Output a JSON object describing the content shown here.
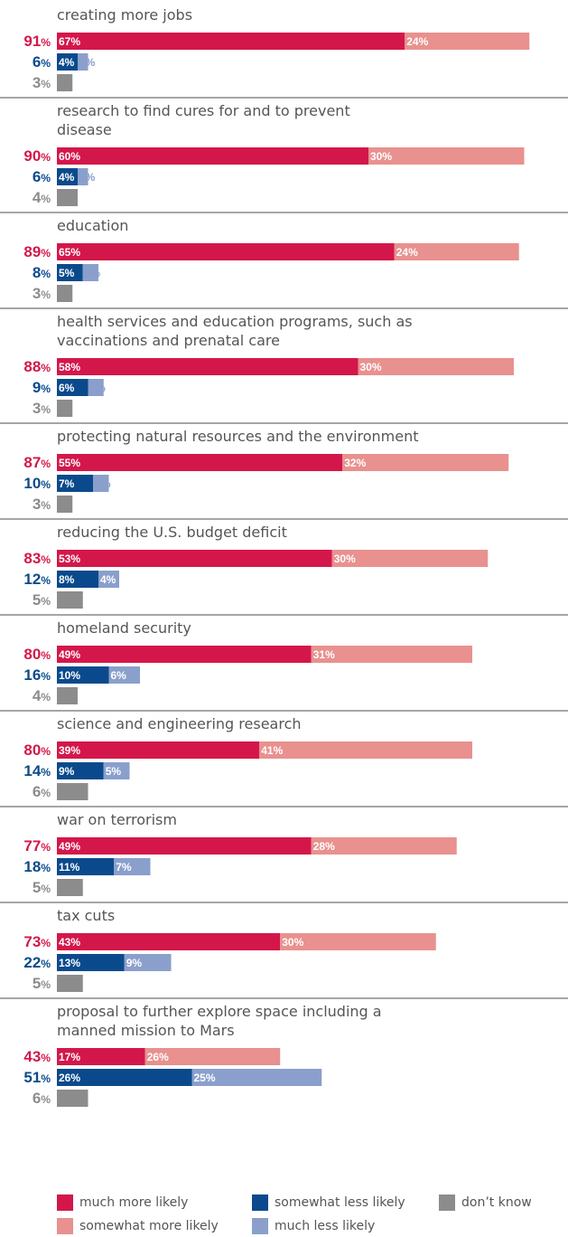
{
  "colors": {
    "much_more": "#d4174a",
    "somewhat_more": "#e8918f",
    "somewhat_less": "#0a4a8c",
    "much_less": "#8a9fcc",
    "dont_know": "#8c8c8c",
    "more_total": "#d4174a",
    "less_total": "#0a4a8c",
    "dk_total": "#8c8c8c",
    "text": "#555555",
    "divider": "#888888"
  },
  "legend": [
    {
      "key": "much_more",
      "label": "much more likely"
    },
    {
      "key": "somewhat_less",
      "label": "somewhat less likely"
    },
    {
      "key": "dont_know",
      "label": "don’t know"
    },
    {
      "key": "somewhat_more",
      "label": "somewhat more likely"
    },
    {
      "key": "much_less",
      "label": "much less likely"
    }
  ],
  "chart_data": {
    "type": "bar",
    "orientation": "horizontal",
    "stacked": true,
    "grid": false,
    "legend_position": "bottom",
    "value_unit": "%",
    "items": [
      {
        "label": "creating more jobs",
        "more_total": 91,
        "much_more": 67,
        "somewhat_more": 24,
        "less_total": 6,
        "somewhat_less": 4,
        "much_less": 2,
        "dont_know": 3
      },
      {
        "label": "research to find cures for and to prevent disease",
        "more_total": 90,
        "much_more": 60,
        "somewhat_more": 30,
        "less_total": 6,
        "somewhat_less": 4,
        "much_less": 2,
        "dont_know": 4
      },
      {
        "label": "education",
        "more_total": 89,
        "much_more": 65,
        "somewhat_more": 24,
        "less_total": 8,
        "somewhat_less": 5,
        "much_less": 3,
        "dont_know": 3
      },
      {
        "label": "health services and education programs, such as vaccinations and prenatal care",
        "more_total": 88,
        "much_more": 58,
        "somewhat_more": 30,
        "less_total": 9,
        "somewhat_less": 6,
        "much_less": 3,
        "dont_know": 3
      },
      {
        "label": "protecting natural resources and the environment",
        "more_total": 87,
        "much_more": 55,
        "somewhat_more": 32,
        "less_total": 10,
        "somewhat_less": 7,
        "much_less": 3,
        "dont_know": 3
      },
      {
        "label": "reducing the U.S. budget deficit",
        "more_total": 83,
        "much_more": 53,
        "somewhat_more": 30,
        "less_total": 12,
        "somewhat_less": 8,
        "much_less": 4,
        "dont_know": 5
      },
      {
        "label": "homeland security",
        "more_total": 80,
        "much_more": 49,
        "somewhat_more": 31,
        "less_total": 16,
        "somewhat_less": 10,
        "much_less": 6,
        "dont_know": 4
      },
      {
        "label": "science and engineering research",
        "more_total": 80,
        "much_more": 39,
        "somewhat_more": 41,
        "less_total": 14,
        "somewhat_less": 9,
        "much_less": 5,
        "dont_know": 6
      },
      {
        "label": "war on terrorism",
        "more_total": 77,
        "much_more": 49,
        "somewhat_more": 28,
        "less_total": 18,
        "somewhat_less": 11,
        "much_less": 7,
        "dont_know": 5
      },
      {
        "label": "tax cuts",
        "more_total": 73,
        "much_more": 43,
        "somewhat_more": 30,
        "less_total": 22,
        "somewhat_less": 13,
        "much_less": 9,
        "dont_know": 5
      },
      {
        "label": "proposal to further explore space including a manned mission to Mars",
        "more_total": 43,
        "much_more": 17,
        "somewhat_more": 26,
        "less_total": 51,
        "somewhat_less": 26,
        "much_less": 25,
        "dont_know": 6
      }
    ]
  }
}
